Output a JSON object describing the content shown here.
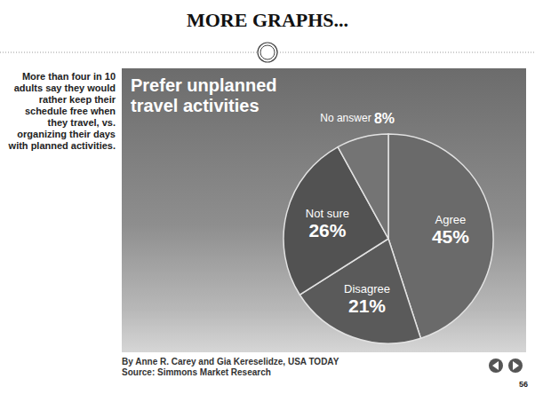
{
  "chart_data": {
    "type": "pie",
    "title": "Prefer unplanned travel activities",
    "categories": [
      "Agree",
      "Disagree",
      "Not sure",
      "No answer"
    ],
    "values": [
      45,
      21,
      26,
      8
    ],
    "value_labels": [
      "45%",
      "21%",
      "26%",
      "8%"
    ],
    "colors": [
      "#6a6a6a",
      "#5a5a5a",
      "#525252",
      "#747474"
    ],
    "data_labels": true
  },
  "slide": {
    "heading": "MORE GRAPHS...",
    "caption": "More than four in 10 adults say they would rather keep their schedule free when they travel, vs. organizing their days with planned activities.",
    "credit": "By Anne R. Carey and Gia Kereselidze, USA TODAY",
    "source": "Source: Simmons Market Research",
    "page": "56"
  }
}
